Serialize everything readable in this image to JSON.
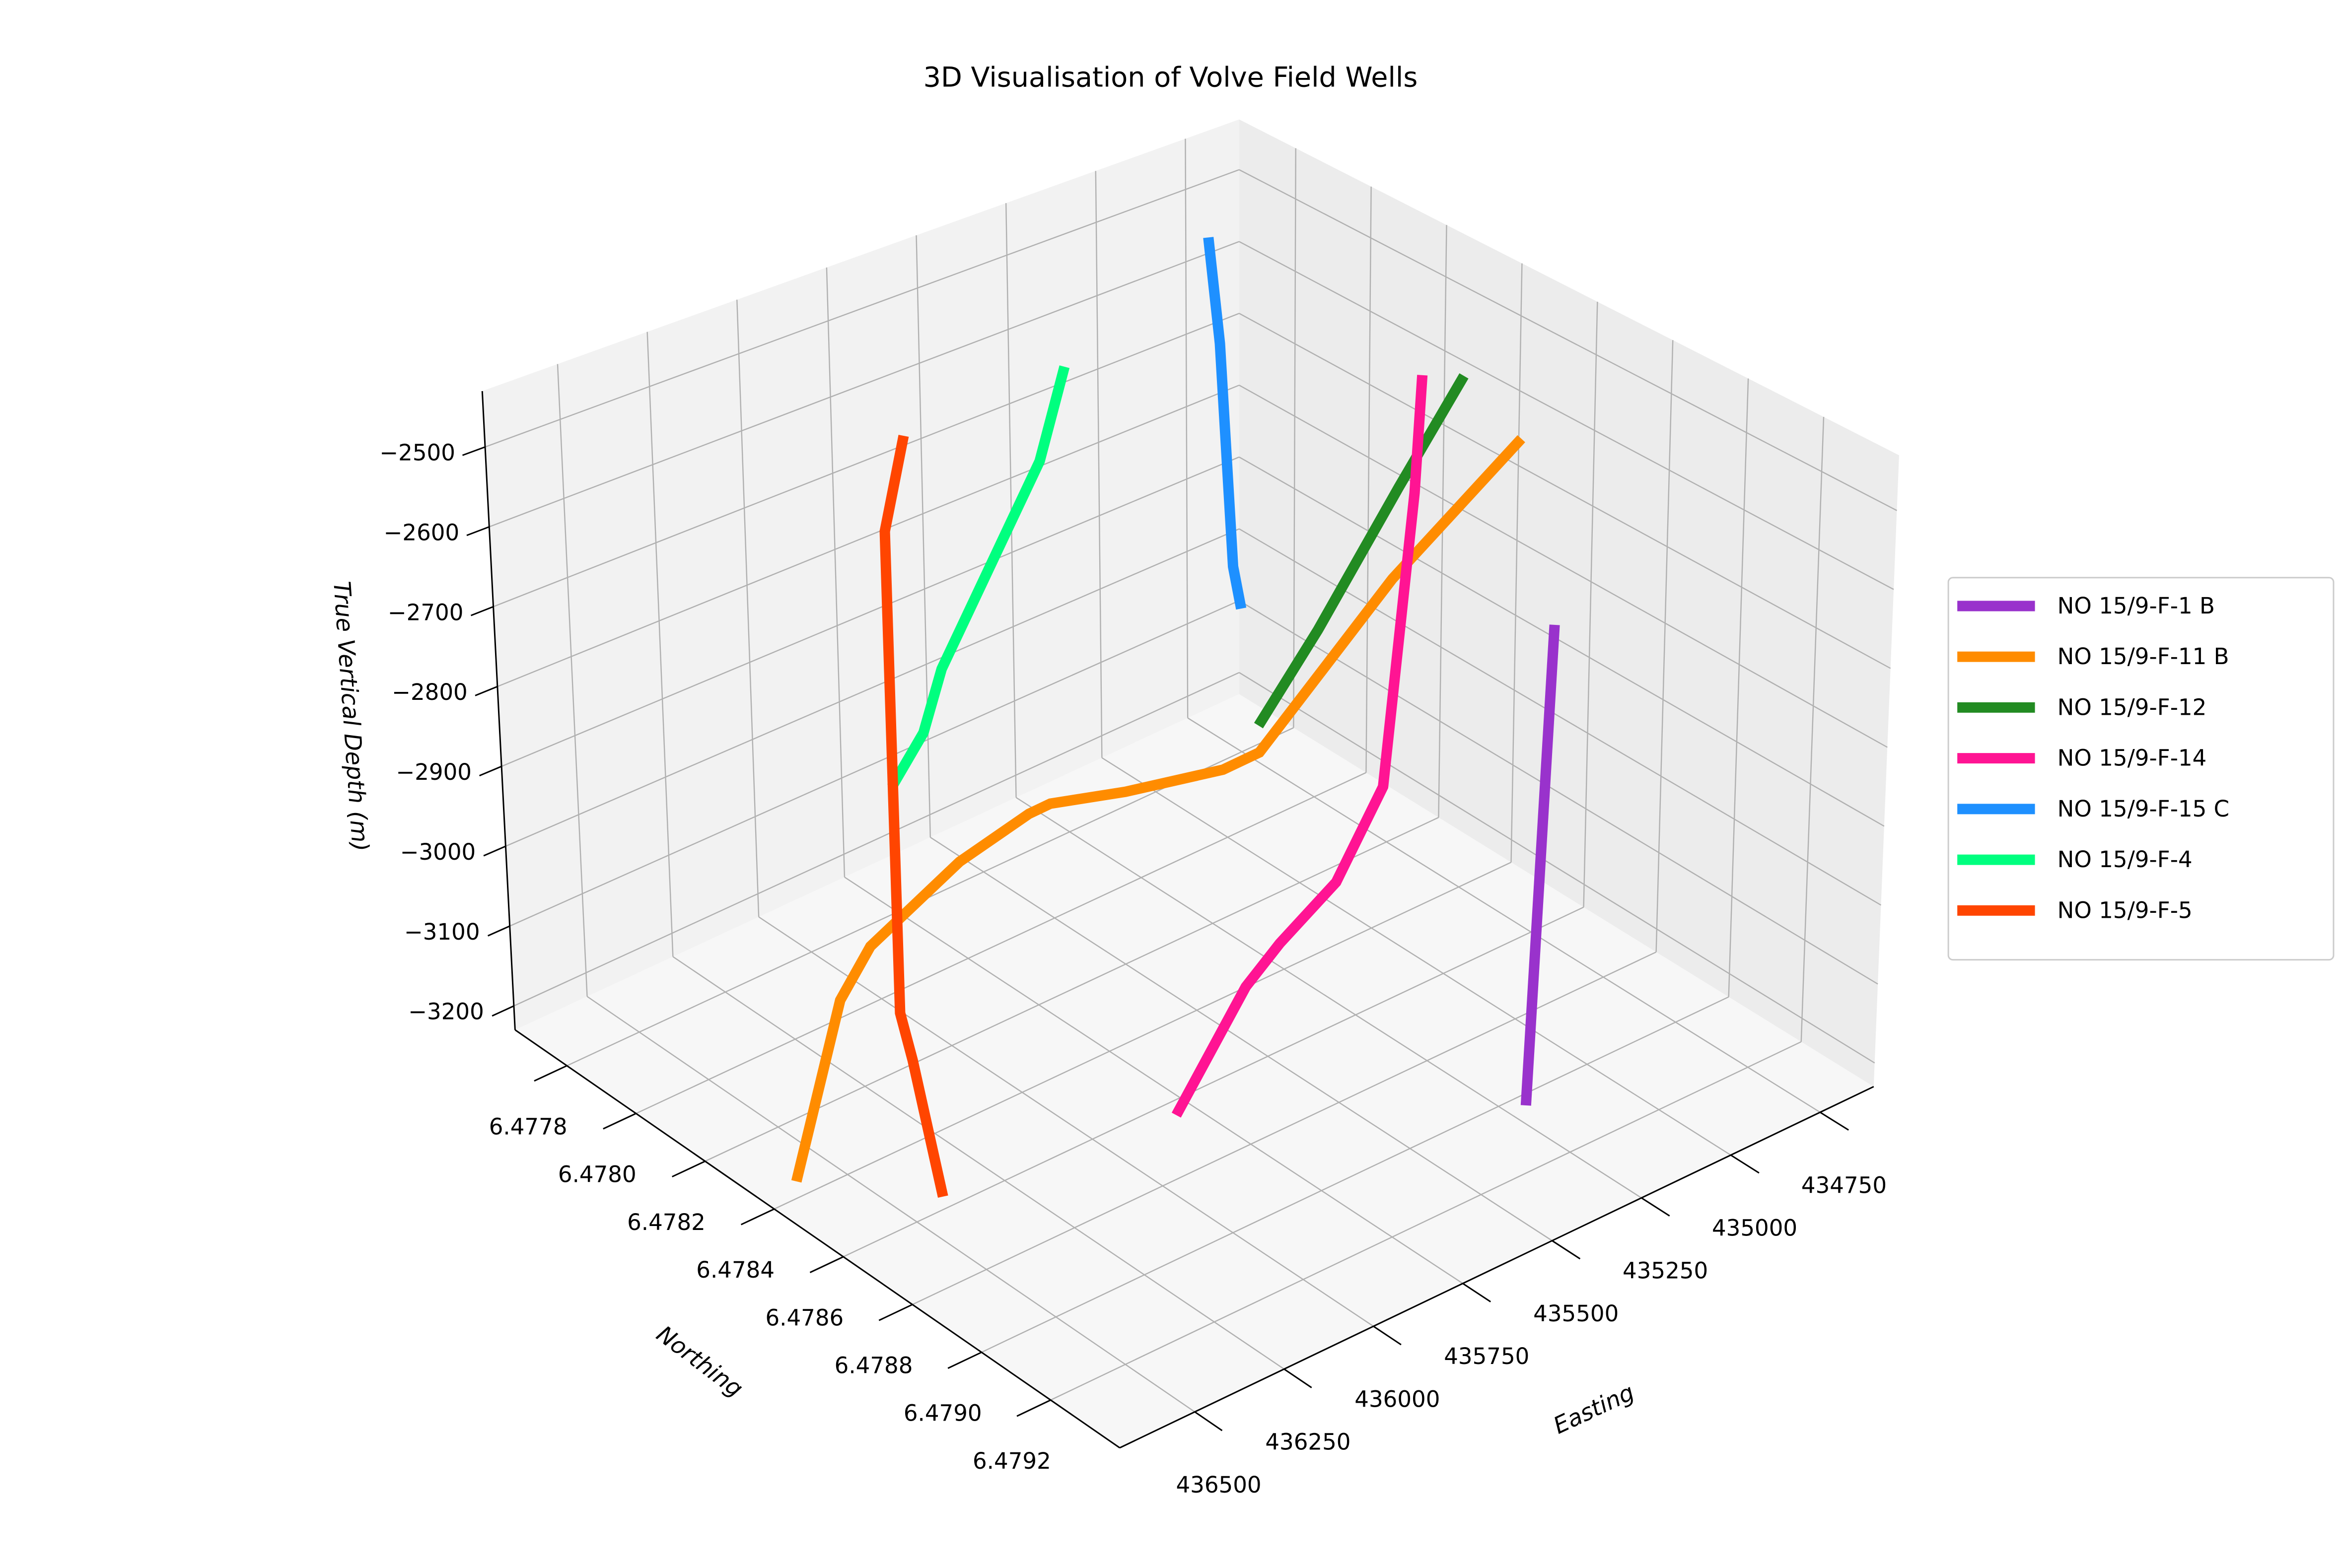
{
  "chart_data": {
    "type": "line3d",
    "title": "3D Visualisation of Volve Field Wells",
    "xlabel": "Easting",
    "ylabel": "Northing",
    "zlabel": "True Vertical Depth (m)",
    "xlim": [
      434600,
      436710
    ],
    "ylim": [
      6.47765,
      6.4794
    ],
    "zlim": [
      -3230,
      -2430
    ],
    "xticks": [
      434750,
      435000,
      435250,
      435500,
      435750,
      436000,
      436250,
      436500
    ],
    "yticks": [
      6.4778,
      {
        "value": 6.478,
        "label": "6.4780"
      },
      6.4782,
      6.4784,
      6.4786,
      6.4788,
      {
        "value": 6.479,
        "label": "6.4790"
      },
      6.4792
    ],
    "zticks": [
      {
        "value": -2500,
        "label": "−2500"
      },
      {
        "value": -2600,
        "label": "−2600"
      },
      {
        "value": -2700,
        "label": "−2700"
      },
      {
        "value": -2800,
        "label": "−2800"
      },
      {
        "value": -2900,
        "label": "−2900"
      },
      {
        "value": -3000,
        "label": "−3000"
      },
      {
        "value": -3100,
        "label": "−3100"
      },
      {
        "value": -3200,
        "label": "−3200"
      }
    ],
    "grid": true,
    "legend": "right",
    "series": [
      {
        "name": "NO 15/9-F-1 B",
        "color": "#9932cc",
        "x": [
          435187,
          435244
        ],
        "y": [
          6.47907,
          6.47907
        ],
        "z": [
          -2620,
          -3210
        ]
      },
      {
        "name": "NO 15/9-F-11 B",
        "color": "#ff8c00",
        "x": [
          435092,
          435359,
          435614,
          435655,
          435767,
          435838,
          435859,
          435977,
          436185,
          436294,
          436664
        ],
        "y": [
          6.47888,
          6.4788,
          6.47869,
          6.47863,
          6.47847,
          6.47833,
          6.47829,
          6.47821,
          6.47816,
          6.47818,
          6.47842
        ],
        "z": [
          -2450,
          -2600,
          -2800,
          -2830,
          -2880,
          -2920,
          -2940,
          -3000,
          -3080,
          -3120,
          -3200
        ]
      },
      {
        "name": "NO 15/9-F-12",
        "color": "#228b22",
        "x": [
          434922,
          435037,
          435177,
          435282
        ],
        "y": [
          6.47856,
          6.4785,
          6.47842,
          6.47836
        ],
        "z": [
          -2480,
          -2620,
          -2800,
          -2920
        ]
      },
      {
        "name": "NO 15/9-F-14",
        "color": "#ff1493",
        "x": [
          435057,
          435188,
          435289,
          435409,
          435537,
          435623,
          435861
        ],
        "y": [
          6.47858,
          6.47869,
          6.47871,
          6.4787,
          6.47867,
          6.47866,
          6.4787
        ],
        "z": [
          -2450,
          -2550,
          -2900,
          -3000,
          -3060,
          -3100,
          -3200
        ]
      },
      {
        "name": "NO 15/9-F-15 C",
        "color": "#1e90ff",
        "x": [
          434978,
          434988,
          435179,
          435177
        ],
        "y": [
          6.47793,
          6.47797,
          6.47819,
          6.47821
        ],
        "z": [
          -2450,
          -2580,
          -2780,
          -2830
        ]
      },
      {
        "name": "NO 15/9-F-4",
        "color": "#00ff7f",
        "x": [
          435612,
          435704,
          435771,
          435907,
          435942,
          435995
        ],
        "y": [
          6.47816,
          6.47818,
          6.47814,
          6.4781,
          6.47808,
          6.47804
        ],
        "z": [
          -2450,
          -2550,
          -2650,
          -2800,
          -2880,
          -2950
        ]
      },
      {
        "name": "NO 15/9-F-5",
        "color": "#ff4500",
        "x": [
          436086,
          436144,
          436369,
          436366,
          436454
        ],
        "y": [
          6.47819,
          6.47819,
          6.47843,
          6.47846,
          6.47863
        ],
        "z": [
          -2450,
          -2560,
          -3050,
          -3100,
          -3200
        ]
      }
    ]
  }
}
